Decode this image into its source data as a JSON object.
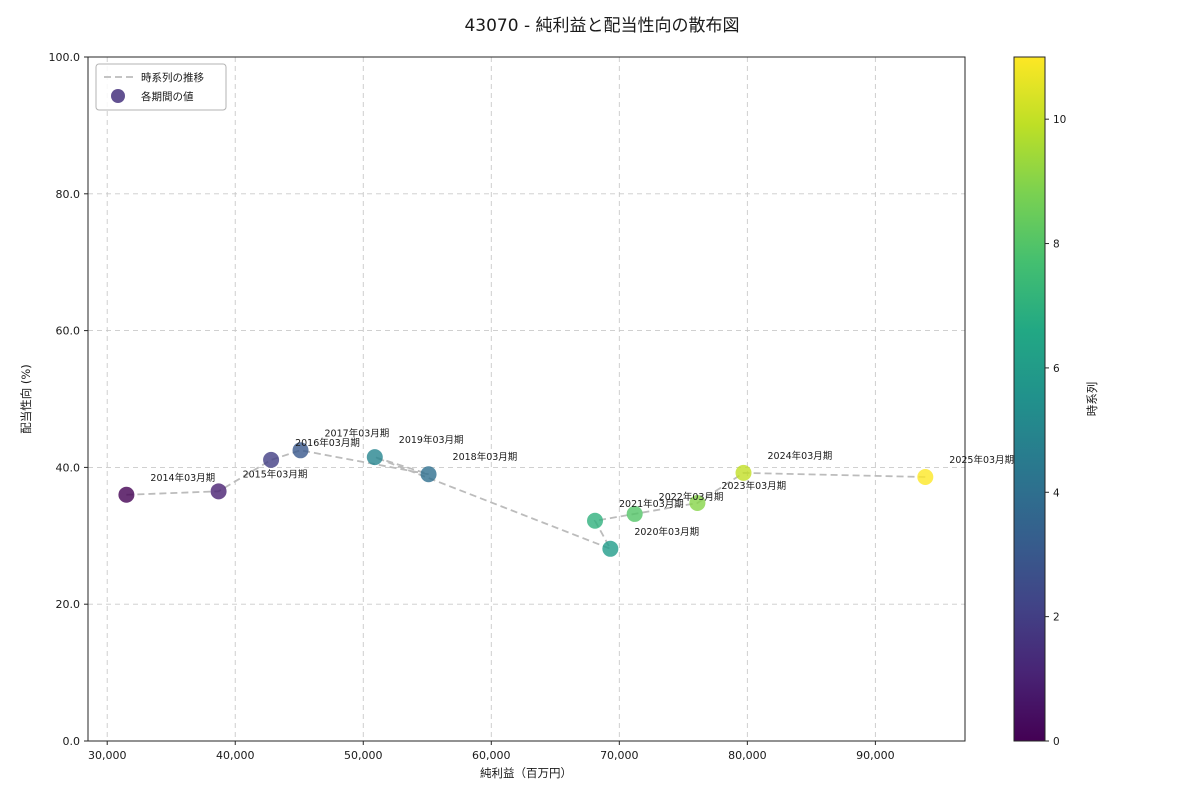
{
  "chart_data": {
    "type": "scatter",
    "title": "43070 - 純利益と配当性向の散布図",
    "xlabel": "純利益（百万円）",
    "ylabel": "配当性向 (%)",
    "xlim": [
      28500,
      97000
    ],
    "ylim": [
      0.0,
      100.0
    ],
    "xticks": [
      30000,
      40000,
      50000,
      60000,
      70000,
      80000,
      90000
    ],
    "yticks": [
      0.0,
      20.0,
      40.0,
      60.0,
      80.0,
      100.0
    ],
    "grid": true,
    "line_color": "#bcbcbc",
    "legend": {
      "position": "upper-left",
      "items": [
        {
          "type": "line",
          "label": "時系列の推移",
          "color": "#bcbcbc"
        },
        {
          "type": "marker",
          "label": "各期間の値",
          "color": "#46327e"
        }
      ]
    },
    "points": [
      {
        "label": "2014年03月期",
        "x": 31500,
        "y": 36.0,
        "t": 0,
        "color": "#440154"
      },
      {
        "label": "2015年03月期",
        "x": 38700,
        "y": 36.5,
        "t": 1,
        "color": "#482172"
      },
      {
        "label": "2016年03月期",
        "x": 42800,
        "y": 41.1,
        "t": 2,
        "color": "#423e85"
      },
      {
        "label": "2017年03月期",
        "x": 45100,
        "y": 42.5,
        "t": 3,
        "color": "#38578c"
      },
      {
        "label": "2018年03月期",
        "x": 55100,
        "y": 39.0,
        "t": 4,
        "color": "#2e6f8e"
      },
      {
        "label": "2019年03月期",
        "x": 50900,
        "y": 41.5,
        "t": 5,
        "color": "#26858e"
      },
      {
        "label": "2020年03月期",
        "x": 69300,
        "y": 28.1,
        "t": 6,
        "color": "#219c89"
      },
      {
        "label": "2021年03月期",
        "x": 68100,
        "y": 32.2,
        "t": 7,
        "color": "#2fb07d"
      },
      {
        "label": "2022年03月期",
        "x": 71200,
        "y": 33.2,
        "t": 8,
        "color": "#53c467"
      },
      {
        "label": "2023年03月期",
        "x": 76100,
        "y": 34.8,
        "t": 9,
        "color": "#86d549"
      },
      {
        "label": "2024年03月期",
        "x": 79700,
        "y": 39.2,
        "t": 10,
        "color": "#c2df26"
      },
      {
        "label": "2025年03月期",
        "x": 93900,
        "y": 38.6,
        "t": 11,
        "color": "#fde725"
      }
    ],
    "colorbar": {
      "label": "時系列",
      "min": 0,
      "max": 11,
      "ticks": [
        0,
        2,
        4,
        6,
        8,
        10
      ],
      "colormap": [
        "#440154",
        "#482475",
        "#414487",
        "#355f8d",
        "#2a788e",
        "#21918c",
        "#22a884",
        "#44bf70",
        "#7ad151",
        "#bddf26",
        "#fde725"
      ]
    }
  }
}
